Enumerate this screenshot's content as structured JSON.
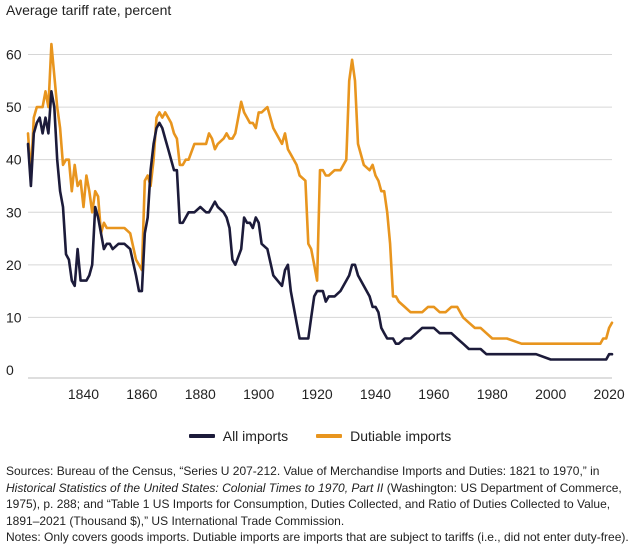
{
  "chart_data": {
    "type": "line",
    "title": "",
    "ylabel": "Average tariff rate, percent",
    "xlabel": "",
    "xlim": [
      1821,
      2021
    ],
    "ylim": [
      0,
      62
    ],
    "y_ticks": [
      0,
      10,
      20,
      30,
      40,
      50,
      60
    ],
    "x_ticks": [
      1840,
      1860,
      1880,
      1900,
      1920,
      1940,
      1960,
      1980,
      2000,
      2020
    ],
    "grid": true,
    "legend_position": "bottom-center",
    "series": [
      {
        "name": "All imports",
        "color": "#1c1b3a",
        "x": [
          1821,
          1822,
          1823,
          1824,
          1825,
          1826,
          1827,
          1828,
          1829,
          1830,
          1831,
          1832,
          1833,
          1834,
          1835,
          1836,
          1837,
          1838,
          1839,
          1840,
          1841,
          1842,
          1843,
          1844,
          1845,
          1846,
          1847,
          1848,
          1849,
          1850,
          1852,
          1854,
          1856,
          1858,
          1859,
          1860,
          1861,
          1862,
          1863,
          1864,
          1865,
          1866,
          1867,
          1868,
          1869,
          1870,
          1871,
          1872,
          1873,
          1874,
          1875,
          1876,
          1878,
          1880,
          1882,
          1883,
          1884,
          1885,
          1886,
          1888,
          1889,
          1890,
          1891,
          1892,
          1894,
          1895,
          1896,
          1897,
          1898,
          1899,
          1900,
          1901,
          1903,
          1905,
          1908,
          1909,
          1910,
          1911,
          1913,
          1914,
          1916,
          1917,
          1918,
          1919,
          1920,
          1921,
          1922,
          1923,
          1924,
          1926,
          1928,
          1930,
          1931,
          1932,
          1933,
          1934,
          1936,
          1938,
          1939,
          1940,
          1941,
          1942,
          1943,
          1944,
          1945,
          1946,
          1947,
          1948,
          1950,
          1952,
          1954,
          1956,
          1958,
          1960,
          1962,
          1964,
          1966,
          1968,
          1970,
          1972,
          1974,
          1976,
          1978,
          1980,
          1985,
          1990,
          1995,
          2000,
          2005,
          2010,
          2015,
          2017,
          2018,
          2019,
          2020,
          2021
        ],
        "y": [
          43,
          35,
          45,
          47,
          48,
          45,
          48,
          45,
          53,
          50,
          40,
          34,
          31,
          22,
          21,
          17,
          16,
          23,
          17,
          17,
          17,
          18,
          20,
          31,
          29,
          26,
          23,
          24,
          24,
          23,
          24,
          24,
          23,
          18,
          15,
          15,
          26,
          29,
          38,
          43,
          46,
          47,
          46,
          44,
          42,
          40,
          38,
          38,
          28,
          28,
          29,
          30,
          30,
          31,
          30,
          30,
          31,
          32,
          31,
          30,
          29,
          27,
          21,
          20,
          23,
          29,
          28,
          28,
          27,
          29,
          28,
          24,
          23,
          18,
          16,
          19,
          20,
          15,
          9,
          6,
          6,
          6,
          10,
          14,
          15,
          15,
          15,
          13,
          14,
          14,
          15,
          17,
          18,
          20,
          20,
          18,
          16,
          14,
          12,
          12,
          11,
          8,
          7,
          6,
          6,
          6,
          5,
          5,
          6,
          6,
          7,
          8,
          8,
          8,
          7,
          7,
          7,
          6,
          5,
          4,
          4,
          4,
          3,
          3,
          3,
          3,
          3,
          2,
          2,
          2,
          2,
          2,
          2,
          2,
          3,
          3
        ]
      },
      {
        "name": "Dutiable imports",
        "color": "#e8951e",
        "x": [
          1821,
          1822,
          1823,
          1824,
          1825,
          1826,
          1827,
          1828,
          1829,
          1830,
          1831,
          1832,
          1833,
          1834,
          1835,
          1836,
          1837,
          1838,
          1839,
          1840,
          1841,
          1842,
          1843,
          1844,
          1845,
          1846,
          1847,
          1848,
          1849,
          1850,
          1852,
          1854,
          1856,
          1858,
          1859,
          1860,
          1861,
          1862,
          1863,
          1864,
          1865,
          1866,
          1867,
          1868,
          1869,
          1870,
          1871,
          1872,
          1873,
          1874,
          1875,
          1876,
          1878,
          1880,
          1882,
          1883,
          1884,
          1885,
          1886,
          1888,
          1889,
          1890,
          1891,
          1892,
          1894,
          1895,
          1896,
          1897,
          1898,
          1899,
          1900,
          1901,
          1903,
          1905,
          1908,
          1909,
          1910,
          1911,
          1913,
          1914,
          1916,
          1917,
          1918,
          1919,
          1920,
          1921,
          1922,
          1923,
          1924,
          1926,
          1928,
          1930,
          1931,
          1932,
          1933,
          1934,
          1936,
          1938,
          1939,
          1940,
          1941,
          1942,
          1943,
          1944,
          1945,
          1946,
          1947,
          1948,
          1950,
          1952,
          1954,
          1956,
          1958,
          1960,
          1962,
          1964,
          1966,
          1968,
          1970,
          1972,
          1974,
          1976,
          1978,
          1980,
          1985,
          1990,
          1995,
          2000,
          2005,
          2010,
          2015,
          2017,
          2018,
          2019,
          2020,
          2021
        ],
        "y": [
          45,
          37,
          48,
          50,
          50,
          50,
          53,
          50,
          62,
          56,
          50,
          46,
          39,
          40,
          40,
          34,
          39,
          35,
          36,
          31,
          37,
          34,
          30,
          34,
          33,
          26,
          28,
          27,
          27,
          27,
          27,
          27,
          26,
          21,
          20,
          19,
          36,
          37,
          35,
          40,
          48,
          49,
          48,
          49,
          48,
          47,
          45,
          44,
          39,
          39,
          40,
          40,
          43,
          43,
          43,
          45,
          44,
          42,
          43,
          44,
          45,
          44,
          44,
          45,
          51,
          49,
          48,
          47,
          47,
          46,
          49,
          49,
          50,
          46,
          43,
          45,
          42,
          41,
          39,
          37,
          36,
          24,
          23,
          20,
          17,
          38,
          38,
          37,
          37,
          38,
          38,
          40,
          55,
          59,
          55,
          43,
          39,
          38,
          39,
          37,
          36,
          34,
          34,
          30,
          24,
          14,
          14,
          13,
          12,
          11,
          11,
          11,
          12,
          12,
          11,
          11,
          12,
          12,
          10,
          9,
          8,
          8,
          7,
          6,
          6,
          5,
          5,
          5,
          5,
          5,
          5,
          5,
          6,
          6,
          8,
          9
        ]
      }
    ]
  },
  "legend": {
    "all_imports": "All imports",
    "dutiable_imports": "Dutiable imports"
  },
  "footer": {
    "sources_prefix": "Sources: Bureau of the Census, “Series U 207-212. Value of Merchandise Imports and Duties: 1821 to 1970,” in",
    "sources_italic": "Historical Statistics of the United States: Colonial Times to 1970, Part II",
    "sources_after_italic": " (Washington: US Department of Commerce,",
    "sources_line3": "1975), p. 288; and “Table 1 US Imports for Consumption, Duties Collected, and Ratio of Duties Collected to Value,",
    "sources_line4": "1891–2021 (Thousand $),” US International Trade Commission.",
    "notes": "Notes: Only covers goods imports. Dutiable imports are imports that are subject to tariffs (i.e., did not enter duty-free)."
  }
}
